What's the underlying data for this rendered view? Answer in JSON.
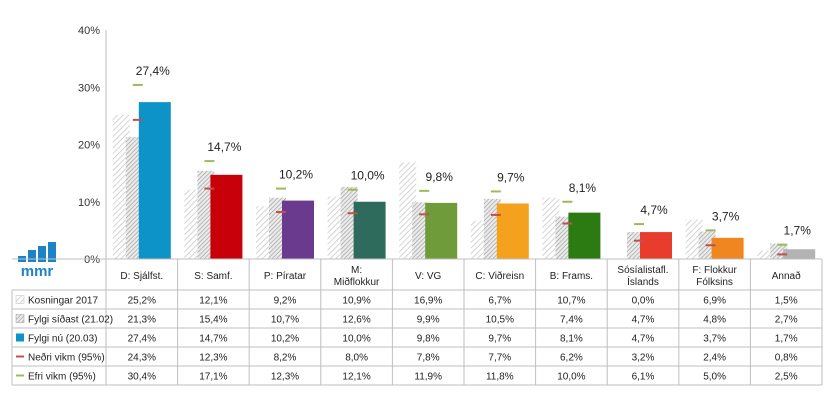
{
  "chart_data": {
    "type": "bar",
    "ylim": [
      0,
      40
    ],
    "yticks": [
      "0%",
      "10%",
      "20%",
      "30%",
      "40%"
    ],
    "grid": false,
    "categories": [
      [
        "D: Sjálfst."
      ],
      [
        "S: Samf."
      ],
      [
        "P: Píratar"
      ],
      [
        "M:",
        "Miðflokkur"
      ],
      [
        "V: VG"
      ],
      [
        "C: Viðreisn"
      ],
      [
        "B: Frams."
      ],
      [
        "Sósíalistafl.",
        "Íslands"
      ],
      [
        "F: Flokkur",
        "Fólksins"
      ],
      [
        "Annað"
      ]
    ],
    "party_colors": [
      "#0e93c9",
      "#c8000a",
      "#6a3a8f",
      "#2e6b5d",
      "#6f9b3a",
      "#f4a11e",
      "#2c7a12",
      "#e83d2c",
      "#f08620",
      "#b3b3b3"
    ],
    "current_labels": [
      "27,4%",
      "14,7%",
      "10,2%",
      "10,0%",
      "9,8%",
      "9,7%",
      "8,1%",
      "4,7%",
      "3,7%",
      "1,7%"
    ],
    "series": [
      {
        "name": "Kosningar 2017",
        "legend_style": "hatch-light",
        "values": [
          25.2,
          12.1,
          9.2,
          10.9,
          16.9,
          6.7,
          10.7,
          0.0,
          6.9,
          1.5
        ],
        "labels": [
          "25,2%",
          "12,1%",
          "9,2%",
          "10,9%",
          "16,9%",
          "6,7%",
          "10,7%",
          "0,0%",
          "6,9%",
          "1,5%"
        ]
      },
      {
        "name": "Fylgi síðast (21.02)",
        "legend_style": "hatch-dark",
        "values": [
          21.3,
          15.4,
          10.7,
          12.6,
          9.9,
          10.5,
          7.4,
          4.7,
          4.8,
          2.7
        ],
        "labels": [
          "21,3%",
          "15,4%",
          "10,7%",
          "12,6%",
          "9,9%",
          "10,5%",
          "7,4%",
          "4,7%",
          "4,8%",
          "2,7%"
        ]
      },
      {
        "name": "Fylgi nú (20.03)",
        "legend_style": "solid",
        "values": [
          27.4,
          14.7,
          10.2,
          10.0,
          9.8,
          9.7,
          8.1,
          4.7,
          3.7,
          1.7
        ],
        "labels": [
          "27,4%",
          "14,7%",
          "10,2%",
          "10,0%",
          "9,8%",
          "9,7%",
          "8,1%",
          "4,7%",
          "3,7%",
          "1,7%"
        ]
      },
      {
        "name": "Neðri vikm (95%)",
        "legend_style": "dash-red",
        "values": [
          24.3,
          12.3,
          8.2,
          8.0,
          7.8,
          7.7,
          6.2,
          3.2,
          2.4,
          0.8
        ],
        "labels": [
          "24,3%",
          "12,3%",
          "8,2%",
          "8,0%",
          "7,8%",
          "7,7%",
          "6,2%",
          "3,2%",
          "2,4%",
          "0,8%"
        ]
      },
      {
        "name": "Efri vikm (95%)",
        "legend_style": "dash-green",
        "values": [
          30.4,
          17.1,
          12.3,
          12.1,
          11.9,
          11.8,
          10.0,
          6.1,
          5.0,
          2.5
        ],
        "labels": [
          "30,4%",
          "17,1%",
          "12,3%",
          "12,1%",
          "11,9%",
          "11,8%",
          "10,0%",
          "6,1%",
          "5,0%",
          "2,5%"
        ]
      }
    ],
    "colors": {
      "hatch_light": "#cfcfcf",
      "hatch_dark": "#a8a8a8",
      "lower_ci": "#c0504d",
      "upper_ci": "#9bbb59",
      "table_border": "#bfbfbf",
      "legend_current": "#0e93c9"
    }
  },
  "logo": {
    "text": "mmr",
    "color": "#1c84c6"
  }
}
